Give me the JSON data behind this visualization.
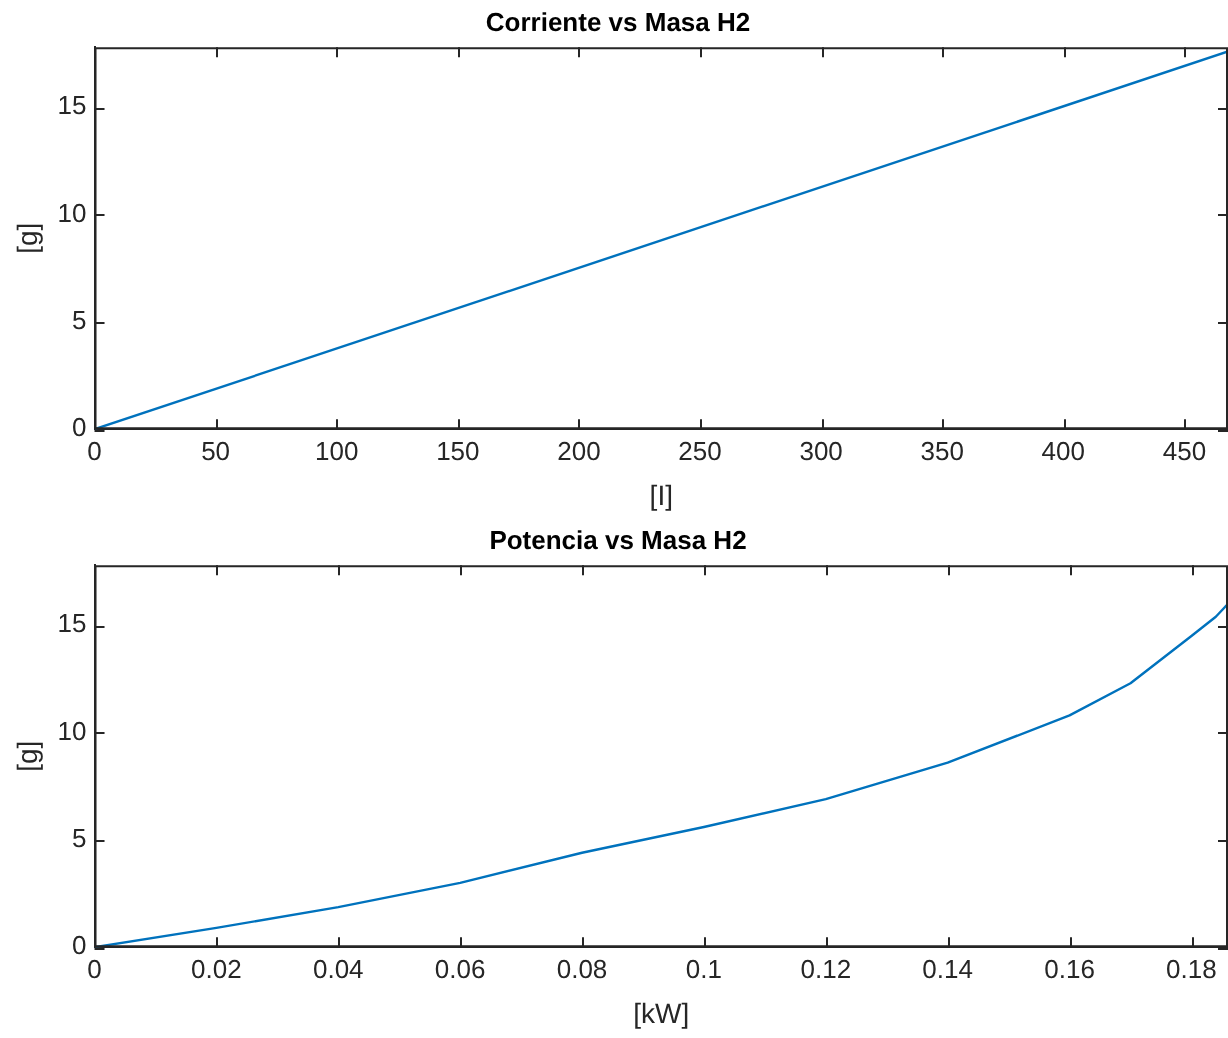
{
  "chart_data": [
    {
      "type": "line",
      "title": "Corriente vs Masa H2",
      "xlabel": "[I]",
      "ylabel": "[g]",
      "series": [
        {
          "color": "#0072bd",
          "x": [
            0,
            468
          ],
          "values": [
            0,
            17.6
          ]
        }
      ],
      "xlim": [
        0,
        468
      ],
      "xticks": [
        0,
        50,
        100,
        150,
        200,
        250,
        300,
        350,
        400,
        450
      ],
      "ylim": [
        0,
        17.8
      ],
      "yticks": [
        0,
        5,
        10,
        15
      ],
      "grid": false,
      "legend": false,
      "marker": "none",
      "line_style": "solid"
    },
    {
      "type": "line",
      "title": "Potencia vs Masa H2",
      "xlabel": "[kW]",
      "ylabel": "[g]",
      "series": [
        {
          "color": "#0072bd",
          "x": [
            0,
            0.02,
            0.04,
            0.06,
            0.08,
            0.1,
            0.12,
            0.14,
            0.16,
            0.17,
            0.18,
            0.184,
            0.186
          ],
          "values": [
            0,
            0.9,
            1.87,
            3.0,
            4.4,
            5.6,
            6.9,
            8.6,
            10.8,
            12.3,
            14.5,
            15.4,
            16.0
          ]
        }
      ],
      "xlim": [
        0,
        0.186
      ],
      "xticks": [
        0,
        0.02,
        0.04,
        0.06,
        0.08,
        0.1,
        0.12,
        0.14,
        0.16,
        0.18
      ],
      "ylim": [
        0,
        17.8
      ],
      "yticks": [
        0,
        5,
        10,
        15
      ],
      "grid": false,
      "legend": false,
      "marker": "none",
      "line_style": "solid"
    }
  ]
}
